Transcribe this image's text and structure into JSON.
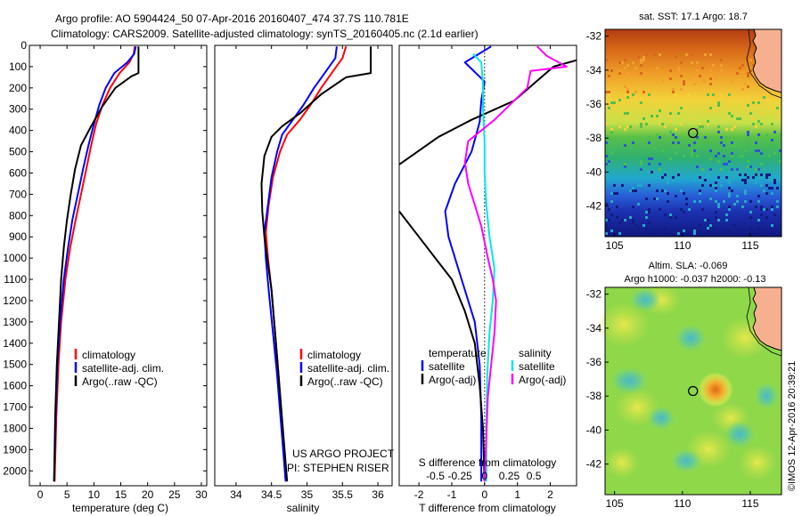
{
  "header": {
    "line1": "Argo profile: AO 5904424_50 07-Apr-2016 20160407_474 37.7S 110.781E",
    "line2": "Climatology: CARS2009. Satellite-adjusted climatology: synTS_20160405.nc (2.1d earlier)"
  },
  "credits": {
    "project": "US ARGO PROJECT",
    "pi": "PI: STEPHEN RISER"
  },
  "watermark": "©IMOS 12-Apr-2016 20:39:21",
  "colors": {
    "climatology": "#ff0000",
    "satellite": "#0000ff",
    "argo": "#000000",
    "sal_satellite": "#00e8e8",
    "sal_argo": "#ff00ff"
  },
  "chart_data": [
    {
      "type": "line",
      "name": "temperature profile",
      "xlabel": "temperature (deg C)",
      "xlim": [
        -2,
        31
      ],
      "ylim": [
        2070,
        0
      ],
      "xticks": [
        0,
        5,
        10,
        15,
        20,
        25,
        30
      ],
      "yticks": [
        0,
        100,
        200,
        300,
        400,
        500,
        600,
        700,
        800,
        900,
        1000,
        1100,
        1200,
        1300,
        1400,
        1500,
        1600,
        1700,
        1800,
        1900,
        2000
      ],
      "legend": [
        "climatology",
        "satellite-adj. clim.",
        "Argo(..raw -QC)"
      ],
      "series": [
        {
          "name": "climatology",
          "color": "#ff0000",
          "points": [
            [
              17.6,
              5
            ],
            [
              17.4,
              40
            ],
            [
              16.6,
              80
            ],
            [
              14.8,
              130
            ],
            [
              13.0,
              200
            ],
            [
              11.6,
              280
            ],
            [
              10.4,
              370
            ],
            [
              9.5,
              470
            ],
            [
              8.6,
              580
            ],
            [
              7.6,
              700
            ],
            [
              6.6,
              820
            ],
            [
              5.6,
              950
            ],
            [
              4.7,
              1100
            ],
            [
              3.9,
              1300
            ],
            [
              3.4,
              1500
            ],
            [
              3.0,
              1750
            ],
            [
              2.7,
              2050
            ]
          ]
        },
        {
          "name": "satellite-adj. clim.",
          "color": "#0000ff",
          "points": [
            [
              17.8,
              5
            ],
            [
              17.5,
              40
            ],
            [
              16.2,
              80
            ],
            [
              13.8,
              130
            ],
            [
              12.2,
              200
            ],
            [
              11.0,
              280
            ],
            [
              10.0,
              370
            ],
            [
              9.0,
              470
            ],
            [
              8.0,
              580
            ],
            [
              7.0,
              700
            ],
            [
              6.0,
              820
            ],
            [
              5.2,
              950
            ],
            [
              4.4,
              1100
            ],
            [
              3.7,
              1300
            ],
            [
              3.2,
              1500
            ],
            [
              2.9,
              1750
            ],
            [
              2.6,
              2050
            ]
          ]
        },
        {
          "name": "Argo(..raw -QC)",
          "color": "#000000",
          "points": [
            [
              18.3,
              5
            ],
            [
              18.3,
              130
            ],
            [
              17.0,
              145
            ],
            [
              14.0,
              200
            ],
            [
              11.5,
              290
            ],
            [
              9.5,
              380
            ],
            [
              7.6,
              470
            ],
            [
              6.5,
              580
            ],
            [
              5.7,
              700
            ],
            [
              5.0,
              820
            ],
            [
              4.4,
              950
            ],
            [
              3.9,
              1100
            ],
            [
              3.5,
              1300
            ],
            [
              3.1,
              1500
            ],
            [
              2.8,
              1750
            ],
            [
              2.6,
              2050
            ]
          ]
        }
      ]
    },
    {
      "type": "line",
      "name": "salinity profile",
      "xlabel": "salinity",
      "xlim": [
        33.7,
        36.2
      ],
      "ylim": [
        2070,
        0
      ],
      "xticks": [
        34,
        34.5,
        35,
        35.5,
        36
      ],
      "legend": [
        "climatology",
        "satellite-adj. clim.",
        "Argo(..raw -QC)"
      ],
      "series": [
        {
          "name": "climatology",
          "color": "#ff0000",
          "points": [
            [
              35.55,
              5
            ],
            [
              35.5,
              60
            ],
            [
              35.35,
              130
            ],
            [
              35.2,
              200
            ],
            [
              35.05,
              280
            ],
            [
              34.9,
              350
            ],
            [
              34.72,
              420
            ],
            [
              34.62,
              500
            ],
            [
              34.52,
              620
            ],
            [
              34.46,
              750
            ],
            [
              34.42,
              880
            ],
            [
              34.45,
              1000
            ],
            [
              34.5,
              1150
            ],
            [
              34.55,
              1350
            ],
            [
              34.6,
              1550
            ],
            [
              34.65,
              1800
            ],
            [
              34.7,
              2050
            ]
          ]
        },
        {
          "name": "satellite-adj. clim.",
          "color": "#0000ff",
          "points": [
            [
              35.42,
              5
            ],
            [
              35.4,
              60
            ],
            [
              35.25,
              130
            ],
            [
              35.1,
              200
            ],
            [
              34.95,
              280
            ],
            [
              34.8,
              350
            ],
            [
              34.65,
              420
            ],
            [
              34.58,
              500
            ],
            [
              34.5,
              620
            ],
            [
              34.45,
              750
            ],
            [
              34.4,
              880
            ],
            [
              34.42,
              1000
            ],
            [
              34.46,
              1150
            ],
            [
              34.52,
              1350
            ],
            [
              34.58,
              1550
            ],
            [
              34.64,
              1800
            ],
            [
              34.7,
              2050
            ]
          ]
        },
        {
          "name": "Argo(..raw -QC)",
          "color": "#000000",
          "points": [
            [
              35.9,
              5
            ],
            [
              35.9,
              130
            ],
            [
              35.55,
              150
            ],
            [
              35.2,
              230
            ],
            [
              34.9,
              320
            ],
            [
              34.65,
              380
            ],
            [
              34.5,
              430
            ],
            [
              34.4,
              520
            ],
            [
              34.36,
              650
            ],
            [
              34.37,
              780
            ],
            [
              34.4,
              900
            ],
            [
              34.44,
              1000
            ],
            [
              34.5,
              1150
            ],
            [
              34.55,
              1350
            ],
            [
              34.6,
              1550
            ],
            [
              34.66,
              1800
            ],
            [
              34.72,
              2050
            ]
          ]
        }
      ]
    },
    {
      "type": "line",
      "name": "difference from climatology",
      "xlabel": "T difference from climatology",
      "xlabel2": "S difference from climatology",
      "xlim": [
        -2.6,
        2.8
      ],
      "ylim": [
        2070,
        0
      ],
      "xticks": [
        -2,
        -1,
        0,
        1,
        2
      ],
      "xticks_s": [
        "-0.5",
        "-0.25",
        "0",
        "0.25",
        "0.5"
      ],
      "legend": [
        [
          "temperature",
          "satellite",
          "Argo(-adj)"
        ],
        [
          "salinity",
          "satellite",
          "Argo(-adj)"
        ]
      ],
      "series": [
        {
          "name": "temperature satellite",
          "color": "#0000ff",
          "points": [
            [
              0.2,
              5
            ],
            [
              -0.6,
              80
            ],
            [
              0.0,
              170
            ],
            [
              -0.1,
              260
            ],
            [
              -0.15,
              360
            ],
            [
              -0.4,
              500
            ],
            [
              -0.9,
              650
            ],
            [
              -1.2,
              780
            ],
            [
              -1.1,
              900
            ],
            [
              -0.9,
              1000
            ],
            [
              -0.6,
              1150
            ],
            [
              -0.3,
              1300
            ],
            [
              -0.15,
              1500
            ],
            [
              -0.1,
              1750
            ],
            [
              -0.1,
              2050
            ]
          ]
        },
        {
          "name": "temperature Argo(-adj)",
          "color": "#000000",
          "points": [
            [
              2.8,
              70
            ],
            [
              2.1,
              100
            ],
            [
              1.5,
              180
            ],
            [
              0.9,
              260
            ],
            [
              -0.4,
              350
            ],
            [
              -1.4,
              430
            ],
            [
              -2.6,
              560
            ]
          ]
        },
        {
          "name": "temperature Argo(-adj) lower",
          "color": "#000000",
          "points": [
            [
              -2.6,
              780
            ],
            [
              -2.0,
              900
            ],
            [
              -1.5,
              1000
            ],
            [
              -1.0,
              1100
            ],
            [
              -0.6,
              1250
            ],
            [
              -0.3,
              1400
            ],
            [
              -0.15,
              1600
            ],
            [
              -0.05,
              1800
            ],
            [
              0.0,
              2050
            ]
          ]
        },
        {
          "name": "salinity satellite",
          "color": "#00e8e8",
          "points": [
            [
              -0.35,
              40
            ],
            [
              -0.1,
              80
            ],
            [
              -0.05,
              180
            ],
            [
              -0.05,
              300
            ],
            [
              0.0,
              450
            ],
            [
              0.0,
              600
            ],
            [
              0.05,
              750
            ],
            [
              0.15,
              900
            ],
            [
              0.3,
              1050
            ],
            [
              0.25,
              1200
            ],
            [
              0.15,
              1350
            ],
            [
              0.08,
              1550
            ],
            [
              0.05,
              1800
            ],
            [
              0.05,
              2050
            ]
          ]
        },
        {
          "name": "salinity Argo(-adj)",
          "color": "#ff00ff",
          "points": [
            [
              1.6,
              5
            ],
            [
              1.9,
              50
            ],
            [
              2.5,
              100
            ],
            [
              1.4,
              120
            ],
            [
              1.3,
              200
            ],
            [
              0.3,
              350
            ],
            [
              -0.5,
              450
            ],
            [
              -0.6,
              550
            ],
            [
              -0.5,
              650
            ],
            [
              -0.3,
              750
            ],
            [
              -0.1,
              850
            ],
            [
              0.1,
              1000
            ],
            [
              0.25,
              1100
            ],
            [
              0.35,
              1200
            ],
            [
              0.3,
              1350
            ],
            [
              0.2,
              1500
            ],
            [
              0.1,
              1650
            ],
            [
              0.05,
              1850
            ],
            [
              0.0,
              2050
            ]
          ]
        }
      ]
    },
    {
      "type": "heatmap",
      "name": "sat. SST map",
      "title": "sat. SST: 17.1  Argo: 18.7",
      "xlim": [
        104.3,
        117.3
      ],
      "ylim": [
        -43.8,
        -31.6
      ],
      "xticks": [
        105,
        110,
        115
      ],
      "yticks": [
        -32,
        -34,
        -36,
        -38,
        -40,
        -42
      ],
      "marker": [
        110.78,
        -37.7
      ]
    },
    {
      "type": "heatmap",
      "name": "altimetry map",
      "title": "Altim. SLA: -0.069",
      "subtitle": "Argo h1000: -0.037 h2000: -0.13",
      "xlim": [
        104.3,
        117.3
      ],
      "ylim": [
        -43.8,
        -31.6
      ],
      "xticks": [
        105,
        110,
        115
      ],
      "yticks": [
        -32,
        -34,
        -36,
        -38,
        -40,
        -42
      ],
      "marker": [
        110.78,
        -37.7
      ]
    }
  ]
}
